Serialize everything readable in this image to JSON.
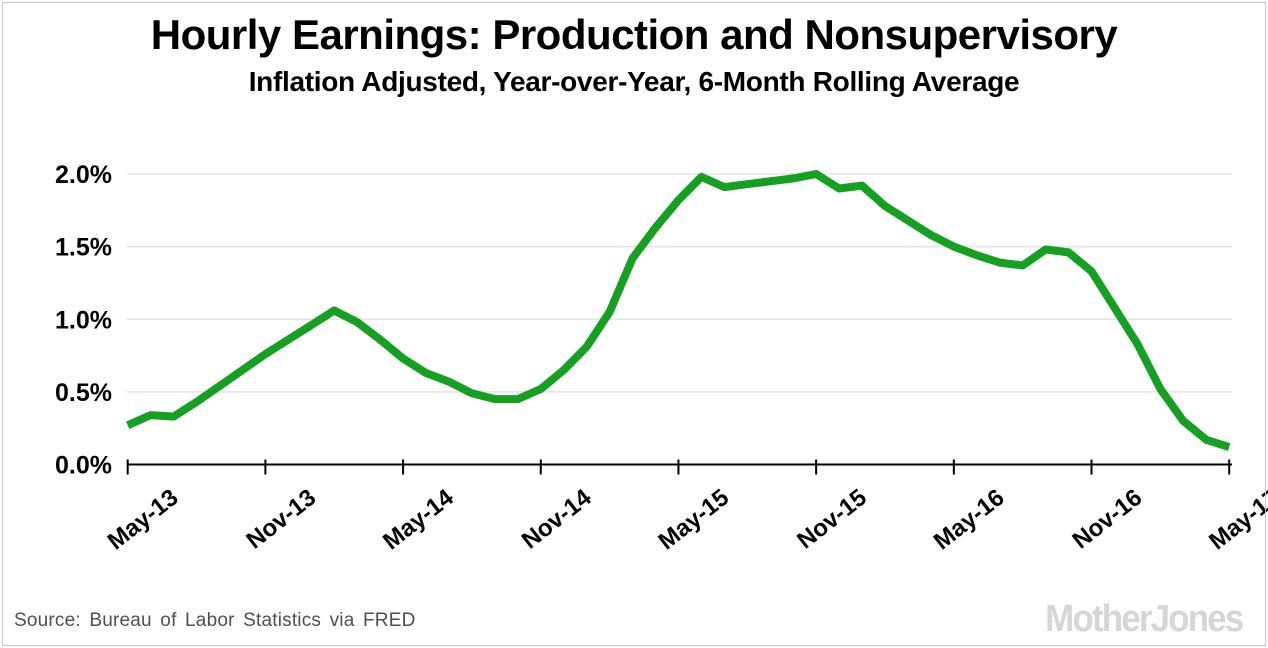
{
  "header": {
    "title": "Hourly Earnings: Production and Nonsupervisory",
    "subtitle": "Inflation Adjusted, Year-over-Year, 6-Month Rolling Average"
  },
  "chart_data": {
    "type": "line",
    "x": [
      "May-13",
      "Jun-13",
      "Jul-13",
      "Aug-13",
      "Sep-13",
      "Oct-13",
      "Nov-13",
      "Dec-13",
      "Jan-14",
      "Feb-14",
      "Mar-14",
      "Apr-14",
      "May-14",
      "Jun-14",
      "Jul-14",
      "Aug-14",
      "Sep-14",
      "Oct-14",
      "Nov-14",
      "Dec-14",
      "Jan-15",
      "Feb-15",
      "Mar-15",
      "Apr-15",
      "May-15",
      "Jun-15",
      "Jul-15",
      "Aug-15",
      "Sep-15",
      "Oct-15",
      "Nov-15",
      "Dec-15",
      "Jan-16",
      "Feb-16",
      "Mar-16",
      "Apr-16",
      "May-16",
      "Jun-16",
      "Jul-16",
      "Aug-16",
      "Sep-16",
      "Oct-16",
      "Nov-16",
      "Dec-16",
      "Jan-17",
      "Feb-17",
      "Mar-17",
      "Apr-17",
      "May-17"
    ],
    "values": [
      0.27,
      0.34,
      0.33,
      0.43,
      0.54,
      0.65,
      0.76,
      0.86,
      0.96,
      1.06,
      0.98,
      0.86,
      0.73,
      0.63,
      0.57,
      0.49,
      0.45,
      0.45,
      0.52,
      0.65,
      0.81,
      1.05,
      1.42,
      1.63,
      1.82,
      1.98,
      1.91,
      1.93,
      1.95,
      1.97,
      2.0,
      1.9,
      1.92,
      1.78,
      1.68,
      1.58,
      1.5,
      1.44,
      1.39,
      1.37,
      1.48,
      1.46,
      1.33,
      1.08,
      0.83,
      0.52,
      0.3,
      0.17,
      0.12
    ],
    "x_tick_labels": [
      "May-13",
      "Nov-13",
      "May-14",
      "Nov-14",
      "May-15",
      "Nov-15",
      "May-16",
      "Nov-16",
      "May-17"
    ],
    "x_tick_interval": 6,
    "y_tick_labels": [
      "0.0%",
      "0.5%",
      "1.0%",
      "1.5%",
      "2.0%"
    ],
    "y_tick_values": [
      0,
      0.5,
      1.0,
      1.5,
      2.0
    ],
    "ylim": [
      0,
      2.15
    ],
    "grid": true,
    "legend": "none",
    "line_color": "#16a022",
    "grid_color": "#e3e3e3",
    "axis_color": "#000000",
    "tick_label_color": "#000000"
  },
  "footer": {
    "source": "Source: Bureau of Labor Statistics via FRED",
    "logo": "MotherJones"
  }
}
